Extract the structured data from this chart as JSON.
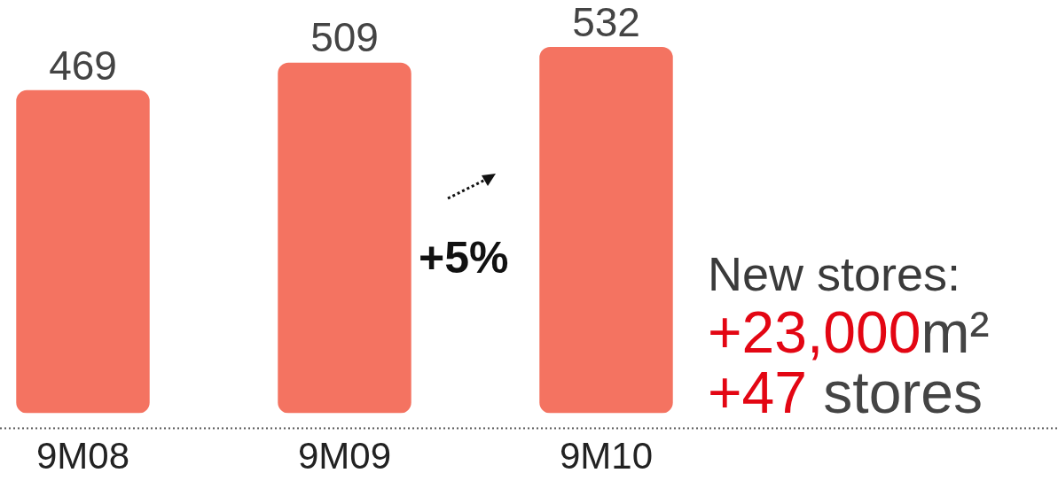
{
  "chart_data": {
    "type": "bar",
    "categories": [
      "9M08",
      "9M09",
      "9M10"
    ],
    "values": [
      469,
      509,
      532
    ],
    "color": "#f47361",
    "data_labels": true,
    "grid": false,
    "legend": false,
    "tick_labels": "x",
    "annotations": [
      "+5%",
      "New stores:",
      "+23,000m²",
      "+47 stores"
    ]
  }
}
